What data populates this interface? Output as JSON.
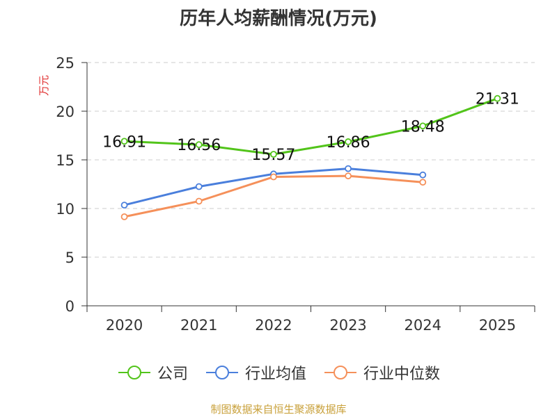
{
  "chart_data": {
    "type": "line",
    "title": "历年人均薪酬情况(万元)",
    "ylabel": "万元",
    "xlabel": "",
    "ylim": [
      0,
      25
    ],
    "yticks": [
      0,
      5,
      10,
      15,
      20,
      25
    ],
    "categories": [
      "2020",
      "2021",
      "2022",
      "2023",
      "2024",
      "2025"
    ],
    "series": [
      {
        "name": "公司",
        "color": "#52c41a",
        "values": [
          16.91,
          16.56,
          15.57,
          16.86,
          18.48,
          21.31
        ],
        "labels": [
          "16.91",
          "16.56",
          "15.57",
          "16.86",
          "18.48",
          "21.31"
        ]
      },
      {
        "name": "行业均值",
        "color": "#4a7fdc",
        "values": [
          10.35,
          12.25,
          13.55,
          14.1,
          13.45,
          null
        ]
      },
      {
        "name": "行业中位数",
        "color": "#f5905a",
        "values": [
          9.15,
          10.75,
          13.25,
          13.35,
          12.7,
          null
        ]
      }
    ],
    "grid": true,
    "legend_position": "bottom"
  },
  "footer": "制图数据来自恒生聚源数据库",
  "colors": {
    "axis": "#333333",
    "grid": "#cccccc",
    "ylabel": "#e03030"
  }
}
